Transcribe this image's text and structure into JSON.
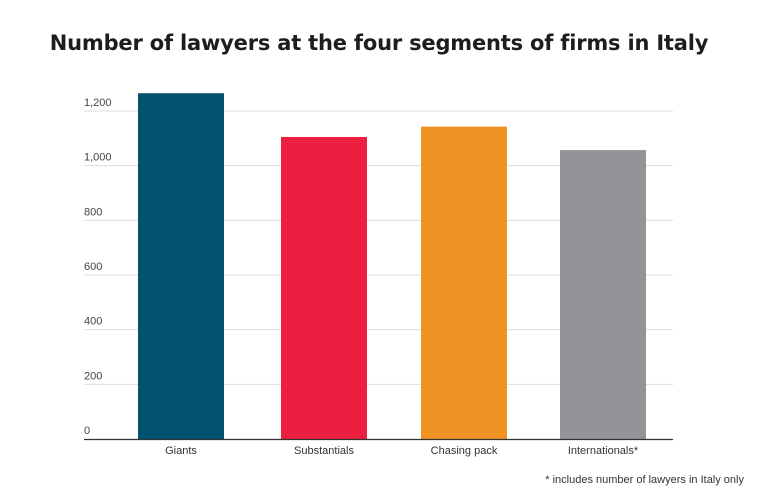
{
  "chart_data": {
    "type": "bar",
    "title": "Number of lawyers at the four segments of firms in Italy",
    "categories": [
      "Giants",
      "Substantials",
      "Chasing pack",
      "Internationals*"
    ],
    "values": [
      1265,
      1105,
      1143,
      1057
    ],
    "colors": [
      "#00526f",
      "#ed1f40",
      "#f09224",
      "#939498"
    ],
    "ylim": [
      0,
      1200
    ],
    "yticks": [
      0,
      200,
      400,
      600,
      800,
      1000,
      1200
    ],
    "ytick_labels": [
      "0",
      "200",
      "400",
      "600",
      "800",
      "1,000",
      "1,200"
    ],
    "grid": true,
    "gridline_color": "#dddddd",
    "baseline_color": "#333333",
    "footnote": "* includes number of lawyers in Italy only"
  }
}
